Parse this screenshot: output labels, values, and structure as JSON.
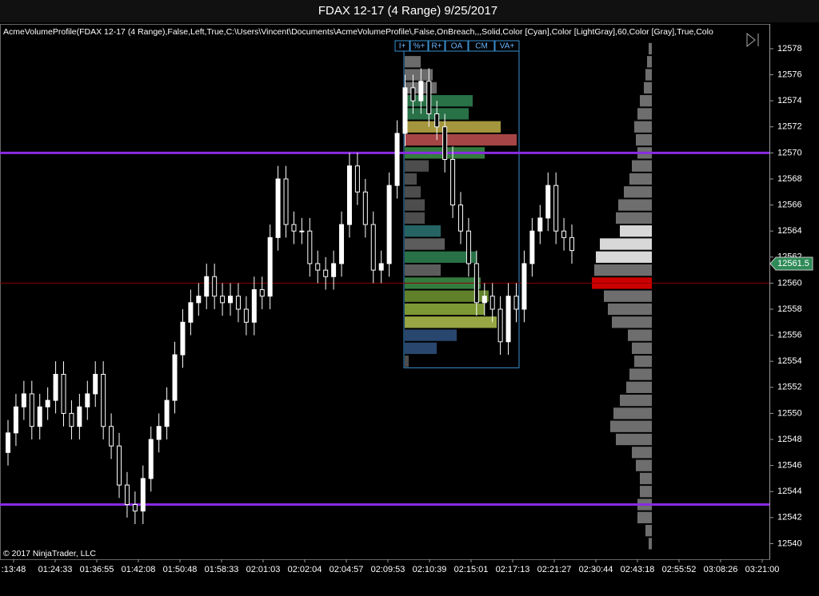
{
  "header": {
    "title": "FDAX 12-17 (4 Range)  9/25/2017"
  },
  "indicator_label": "AcmeVolumeProfile(FDAX 12-17 (4 Range),False,Left,True,C:\\Users\\Vincent\\Documents\\AcmeVolumeProfile\\,False,OnBreach,,,Solid,Color [Cyan],Color [LightGray],60,Color [Gray],True,Colo",
  "buttons": [
    "I+",
    "%+",
    "R+",
    "OA",
    "CM",
    "VA+"
  ],
  "copyright": "© 2017 NinjaTrader, LLC",
  "chart_data": {
    "type": "candlestick",
    "ylim": [
      12538.8,
      12579.9
    ],
    "yticks": [
      12540,
      12542,
      12544,
      12546,
      12548,
      12550,
      12552,
      12554,
      12556,
      12558,
      12560,
      12562,
      12564,
      12566,
      12568,
      12570,
      12572,
      12574,
      12576,
      12578
    ],
    "xtick_labels": [
      ":13:48",
      "01:24:33",
      "01:36:55",
      "01:42:08",
      "01:50:48",
      "01:58:33",
      "02:01:03",
      "02:02:04",
      "02:04:57",
      "02:09:53",
      "02:10:39",
      "02:15:01",
      "02:17:13",
      "02:21:27",
      "02:30:44",
      "02:43:18",
      "02:55:52",
      "03:08:26",
      "03:21:00"
    ],
    "last_price": 12561.5,
    "last_price_color": "#2e8b57",
    "up_color": "#ffffff",
    "down_color": "#000000",
    "levels": [
      {
        "value": 12570,
        "color": "#8a2be2"
      },
      {
        "value": 12543,
        "color": "#8a2be2"
      },
      {
        "value": 12560,
        "color": "#8b0000"
      }
    ],
    "open": [
      12547,
      12548.5,
      12550.5,
      12551.5,
      12549,
      12550.5,
      12551,
      12553,
      12550,
      12549,
      12550.5,
      12551.5,
      12553,
      12549,
      12547.5,
      12544.5,
      12543,
      12542.5,
      12545,
      12548,
      12549,
      12551,
      12554.5,
      12557,
      12558.5,
      12559,
      12560.5,
      12559,
      12558.5,
      12559,
      12558,
      12557,
      12559.5,
      12559,
      12563.5,
      12568,
      12564.5,
      12564,
      12564,
      12561.5,
      12561,
      12560.5,
      12561.5,
      12564.5,
      12569,
      12567,
      12564.5,
      12561,
      12561.5,
      12567.5,
      12571.5,
      12575,
      12574,
      12575.5,
      12573,
      12572,
      12569.5,
      12566,
      12564,
      12561.5,
      12558.5,
      12559,
      12558,
      12555.5,
      12559,
      12558,
      12561.5,
      12564,
      12565,
      12567.5,
      12564,
      12563.5
    ],
    "high": [
      12549.5,
      12551.5,
      12552.5,
      12552.5,
      12551.5,
      12552,
      12554,
      12554,
      12551,
      12551.5,
      12552.5,
      12554,
      12554,
      12550,
      12548.5,
      12545.5,
      12544,
      12546,
      12549,
      12550,
      12552,
      12555.5,
      12558,
      12559.5,
      12560,
      12561.5,
      12561.5,
      12560,
      12560,
      12560,
      12559,
      12560.5,
      12560.5,
      12564.5,
      12569,
      12569,
      12565.5,
      12565,
      12565,
      12562.5,
      12562,
      12562.5,
      12565.5,
      12570,
      12570,
      12568,
      12565.5,
      12562.5,
      12568.5,
      12572.5,
      12576,
      12576,
      12576.5,
      12576.5,
      12574,
      12573,
      12570.5,
      12567,
      12565,
      12562.5,
      12560,
      12560,
      12559,
      12560,
      12560,
      12562.5,
      12565,
      12566,
      12568.5,
      12568.5,
      12565,
      12564.5
    ],
    "low": [
      12546,
      12547.5,
      12549.5,
      12548,
      12548,
      12549.5,
      12550,
      12549,
      12548,
      12548,
      12549.5,
      12550.5,
      12548,
      12546.5,
      12543.5,
      12542,
      12541.5,
      12541.5,
      12544,
      12547,
      12548,
      12550,
      12553.5,
      12556,
      12557.5,
      12558,
      12558,
      12557.5,
      12557.5,
      12557,
      12556,
      12556,
      12558,
      12558,
      12562.5,
      12563.5,
      12563,
      12563,
      12560.5,
      12560,
      12559.5,
      12559.5,
      12560.5,
      12563.5,
      12566,
      12563.5,
      12560,
      12560,
      12560.5,
      12566.5,
      12570.5,
      12573,
      12573,
      12572,
      12571,
      12568.5,
      12565,
      12563,
      12560.5,
      12557.5,
      12557.5,
      12557,
      12554.5,
      12554.5,
      12557,
      12557,
      12560.5,
      12563,
      12564,
      12563,
      12562.5,
      12561.5
    ],
    "close": [
      12548.5,
      12550.5,
      12551.5,
      12549,
      12550.5,
      12551,
      12553,
      12550,
      12549,
      12550.5,
      12551.5,
      12553,
      12549,
      12547.5,
      12544.5,
      12543,
      12542.5,
      12545,
      12548,
      12549,
      12551,
      12554.5,
      12557,
      12558.5,
      12559,
      12560.5,
      12559,
      12558.5,
      12559,
      12558,
      12557,
      12559.5,
      12559,
      12563.5,
      12568,
      12564.5,
      12564,
      12564,
      12561.5,
      12561,
      12560.5,
      12561.5,
      12564.5,
      12569,
      12567,
      12564.5,
      12561,
      12561.5,
      12567.5,
      12571.5,
      12575,
      12574,
      12575.5,
      12573,
      12572,
      12569.5,
      12566,
      12564,
      12561.5,
      12558.5,
      12559,
      12558,
      12555.5,
      12559,
      12558,
      12561.5,
      12564,
      12565,
      12567.5,
      12564,
      12563.5,
      12562.5
    ],
    "session_profile": {
      "prices": [
        12577,
        12576,
        12575,
        12574,
        12573,
        12572,
        12571,
        12570,
        12569,
        12568,
        12567,
        12566,
        12565,
        12564,
        12563,
        12562,
        12561,
        12560,
        12559,
        12558,
        12557,
        12556,
        12555,
        12554
      ],
      "volumes": [
        20,
        35,
        40,
        85,
        80,
        120,
        140,
        100,
        30,
        15,
        20,
        25,
        25,
        45,
        50,
        90,
        45,
        95,
        105,
        100,
        115,
        65,
        40,
        5
      ],
      "colors": [
        "#777777",
        "#777777",
        "#777777",
        "#2e7d4f",
        "#2e7d4f",
        "#b5a642",
        "#b84c4c",
        "#3a8a45",
        "#555555",
        "#555555",
        "#555555",
        "#555555",
        "#555555",
        "#2a6f6f",
        "#666666",
        "#2e7d4f",
        "#666666",
        "#3a8a45",
        "#6a8f2f",
        "#8aa83a",
        "#a8b84a",
        "#2d4f7a",
        "#2d4f7a",
        "#555555"
      ]
    },
    "profile": {
      "color": "#6e6e6e",
      "poc": 12560,
      "poc_color": "#cc0000",
      "highlight_prices": [
        12562,
        12563,
        12564
      ],
      "highlight_color": "#d8d8d8",
      "prices": [
        12578,
        12577,
        12576,
        12575,
        12574,
        12573,
        12572,
        12571,
        12570,
        12569,
        12568,
        12567,
        12566,
        12565,
        12564,
        12563,
        12562,
        12561,
        12560,
        12559,
        12558,
        12557,
        12556,
        12555,
        12554,
        12553,
        12552,
        12551,
        12550,
        12549,
        12548,
        12547,
        12546,
        12545,
        12544,
        12543,
        12542,
        12541,
        12540
      ],
      "volumes": [
        4,
        6,
        8,
        10,
        15,
        18,
        22,
        20,
        18,
        25,
        28,
        35,
        42,
        45,
        40,
        65,
        70,
        72,
        75,
        60,
        55,
        50,
        30,
        25,
        22,
        28,
        32,
        40,
        48,
        52,
        45,
        25,
        20,
        15,
        15,
        18,
        18,
        8,
        4
      ]
    }
  }
}
